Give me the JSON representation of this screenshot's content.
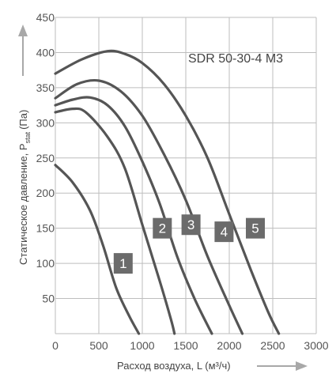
{
  "chart_data": {
    "type": "line",
    "title": "SDR 50-30-4 M3",
    "ylabel": "Статическое давление, P",
    "ylabel_sub": "stat",
    "ylabel_unit": "(Па)",
    "xlabel": "Расход воздуха, L (м³/ч)",
    "xlim": [
      0,
      3000
    ],
    "ylim": [
      0,
      450
    ],
    "xticks": [
      0,
      500,
      1000,
      1500,
      2000,
      2500,
      3000
    ],
    "yticks": [
      50,
      100,
      150,
      200,
      250,
      300,
      350,
      400,
      450
    ],
    "grid": true,
    "series": [
      {
        "name": "1",
        "label_at": [
          780,
          100
        ],
        "points": [
          [
            0,
            240
          ],
          [
            200,
            215
          ],
          [
            400,
            175
          ],
          [
            550,
            125
          ],
          [
            700,
            65
          ],
          [
            850,
            25
          ],
          [
            960,
            0
          ]
        ]
      },
      {
        "name": "2",
        "label_at": [
          1230,
          150
        ],
        "points": [
          [
            0,
            315
          ],
          [
            200,
            320
          ],
          [
            350,
            315
          ],
          [
            600,
            280
          ],
          [
            800,
            235
          ],
          [
            1000,
            155
          ],
          [
            1200,
            75
          ],
          [
            1330,
            20
          ],
          [
            1370,
            0
          ]
        ]
      },
      {
        "name": "3",
        "label_at": [
          1560,
          155
        ],
        "points": [
          [
            0,
            325
          ],
          [
            200,
            333
          ],
          [
            400,
            336
          ],
          [
            600,
            325
          ],
          [
            800,
            295
          ],
          [
            1000,
            245
          ],
          [
            1200,
            185
          ],
          [
            1400,
            110
          ],
          [
            1600,
            50
          ],
          [
            1800,
            0
          ]
        ]
      },
      {
        "name": "4",
        "label_at": [
          1940,
          145
        ],
        "points": [
          [
            0,
            335
          ],
          [
            250,
            355
          ],
          [
            500,
            360
          ],
          [
            750,
            345
          ],
          [
            1000,
            310
          ],
          [
            1250,
            255
          ],
          [
            1500,
            190
          ],
          [
            1750,
            110
          ],
          [
            2000,
            40
          ],
          [
            2150,
            0
          ]
        ]
      },
      {
        "name": "5",
        "label_at": [
          2300,
          150
        ],
        "points": [
          [
            0,
            370
          ],
          [
            300,
            390
          ],
          [
            600,
            402
          ],
          [
            800,
            398
          ],
          [
            1000,
            385
          ],
          [
            1250,
            355
          ],
          [
            1500,
            310
          ],
          [
            1750,
            250
          ],
          [
            2000,
            170
          ],
          [
            2250,
            90
          ],
          [
            2450,
            30
          ],
          [
            2570,
            0
          ]
        ]
      }
    ]
  }
}
